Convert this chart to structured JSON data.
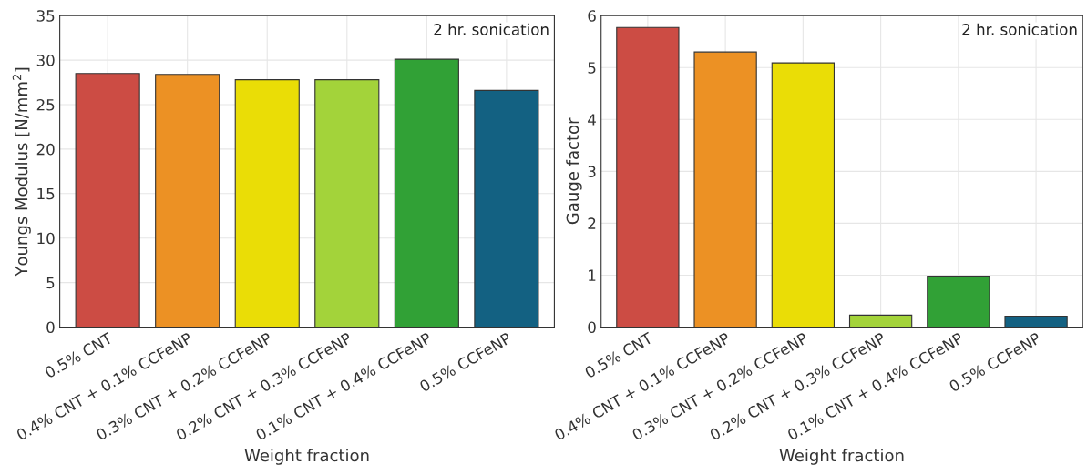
{
  "chart_data": [
    {
      "type": "bar",
      "xlabel": "Weight fraction",
      "ylabel": "Youngs Modulus [N/mm$^{2}$]",
      "categories": [
        "0.5% CNT",
        "0.4% CNT + 0.1% CCFeNP",
        "0.3% CNT + 0.2% CCFeNP",
        "0.2% CNT + 0.3% CCFeNP",
        "0.1% CNT + 0.4% CCFeNP",
        "0.5% CCFeNP"
      ],
      "values": [
        28.5,
        28.4,
        27.8,
        27.8,
        30.1,
        26.6
      ],
      "colors": [
        "#cc4c44",
        "#ec9124",
        "#eadd06",
        "#a3d33a",
        "#31a136",
        "#136182"
      ],
      "ylim": [
        0,
        35
      ],
      "yticks": [
        0,
        5,
        10,
        15,
        20,
        25,
        30,
        35
      ],
      "grid": true,
      "annotations": [
        "2 hr. sonication"
      ]
    },
    {
      "type": "bar",
      "xlabel": "Weight fraction",
      "ylabel": "Gauge factor",
      "categories": [
        "0.5% CNT",
        "0.4% CNT + 0.1% CCFeNP",
        "0.3% CNT + 0.2% CCFeNP",
        "0.2% CNT + 0.3% CCFeNP",
        "0.1% CNT + 0.4% CCFeNP",
        "0.5% CCFeNP"
      ],
      "values": [
        5.77,
        5.3,
        5.09,
        0.23,
        0.98,
        0.21
      ],
      "colors": [
        "#cc4c44",
        "#ec9124",
        "#eadd06",
        "#a3d33a",
        "#31a136",
        "#136182"
      ],
      "ylim": [
        0,
        6
      ],
      "yticks": [
        0,
        1,
        2,
        3,
        4,
        5,
        6
      ],
      "grid": true,
      "annotations": [
        "2 hr. sonication"
      ]
    }
  ]
}
